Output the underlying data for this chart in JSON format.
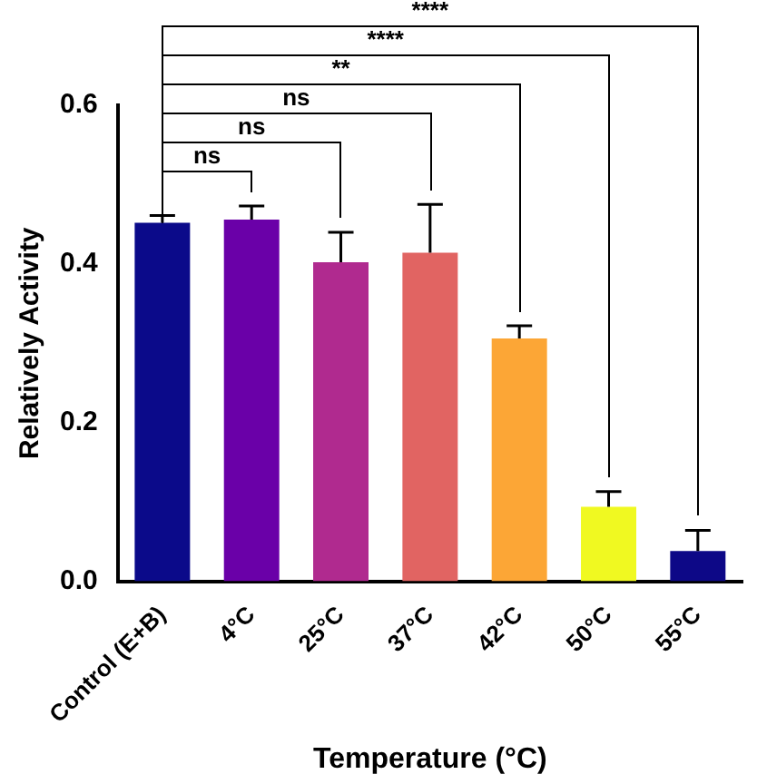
{
  "chart_data": {
    "type": "bar",
    "xlabel": "Temperature (°C)",
    "ylabel": "Relatively Activity",
    "categories": [
      "Control (E+B)",
      "4°C",
      "25°C",
      "37°C",
      "42°C",
      "50°C",
      "55°C"
    ],
    "values": [
      0.452,
      0.456,
      0.402,
      0.414,
      0.306,
      0.094,
      0.038
    ],
    "errors": [
      [
        0.452,
        0.461
      ],
      [
        0.456,
        0.473
      ],
      [
        0.402,
        0.44
      ],
      [
        0.414,
        0.475
      ],
      [
        0.306,
        0.322
      ],
      [
        0.094,
        0.113
      ],
      [
        0.038,
        0.064
      ]
    ],
    "colors": [
      "#0b0a8a",
      "#6a00a8",
      "#b02a8f",
      "#e16462",
      "#fca636",
      "#f0f921",
      "#0d0887"
    ],
    "ylim": [
      0,
      0.6
    ],
    "yticks": [
      {
        "value": 0,
        "label": "0.0"
      },
      {
        "value": 0.2,
        "label": "0.2"
      },
      {
        "value": 0.4,
        "label": "0.4"
      },
      {
        "value": 0.6,
        "label": "0.6"
      }
    ],
    "grid": false,
    "legend": false,
    "annotations": [
      "ns",
      "ns",
      "ns",
      "**",
      "****",
      "****"
    ]
  }
}
